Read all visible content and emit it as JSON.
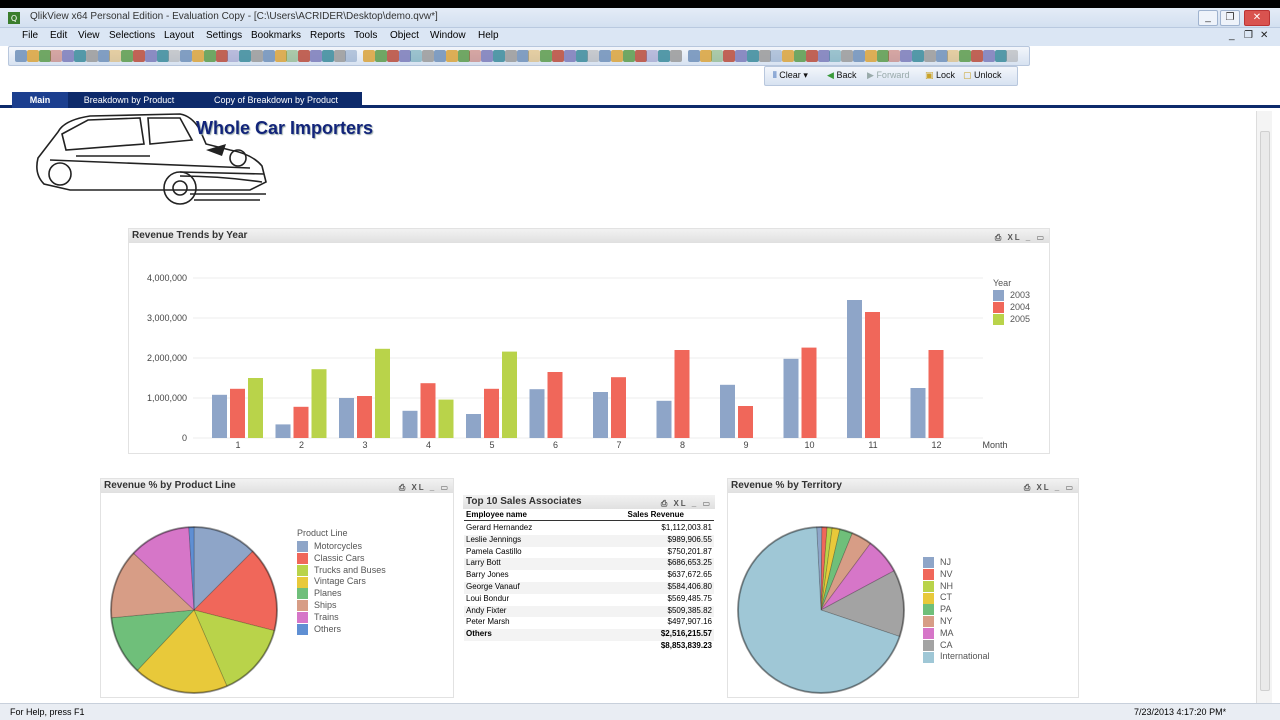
{
  "window": {
    "title": "QlikView x64 Personal Edition - Evaluation Copy - [C:\\Users\\ACRIDER\\Desktop\\demo.qvw*]",
    "controls": [
      "_",
      "❐",
      "✕"
    ]
  },
  "menu": [
    "File",
    "Edit",
    "View",
    "Selections",
    "Layout",
    "Settings",
    "Bookmarks",
    "Reports",
    "Tools",
    "Object",
    "Window",
    "Help"
  ],
  "mdi_controls": [
    "_",
    "❐",
    "✕"
  ],
  "toolbar2": {
    "clear": "Clear",
    "back": "Back",
    "forward": "Forward",
    "lock": "Lock",
    "unlock": "Unlock"
  },
  "tabs": [
    "Main",
    "Breakdown by Product",
    "Copy of Breakdown by Product"
  ],
  "app_title": "Whole Car Importers",
  "caption_icons": "⎙ XL _ ▭",
  "revenue_chart": {
    "caption": "Revenue Trends by Year",
    "chart_data": {
      "type": "bar",
      "categories": [
        "1",
        "2",
        "3",
        "4",
        "5",
        "6",
        "7",
        "8",
        "9",
        "10",
        "11",
        "12"
      ],
      "xlabel": "Month",
      "ylabel": "",
      "ylim": [
        0,
        4500000
      ],
      "yticks": [
        "0",
        "1,000,000",
        "2,000,000",
        "3,000,000",
        "4,000,000"
      ],
      "legend_title": "Year",
      "legend_position": "right",
      "series": [
        {
          "name": "2003",
          "color": "#8ea5c8",
          "values": [
            1080000,
            340000,
            1000000,
            680000,
            600000,
            1220000,
            1150000,
            930000,
            1330000,
            1980000,
            3450000,
            1250000
          ]
        },
        {
          "name": "2004",
          "color": "#f0675a",
          "values": [
            1230000,
            780000,
            1050000,
            1370000,
            1230000,
            1650000,
            1520000,
            2200000,
            800000,
            2260000,
            3150000,
            2200000
          ]
        },
        {
          "name": "2005",
          "color": "#b9d34a",
          "values": [
            1500000,
            1720000,
            2230000,
            960000,
            2160000,
            null,
            null,
            null,
            null,
            null,
            null,
            null
          ]
        }
      ]
    }
  },
  "product_chart": {
    "caption": "Revenue % by Product Line",
    "legend_title": "Product Line",
    "chart_data": {
      "type": "pie",
      "categories": [
        "Motorcycles",
        "Classic Cars",
        "Trucks and Buses",
        "Vintage Cars",
        "Planes",
        "Ships",
        "Trains",
        "Others"
      ],
      "colors": [
        "#8ea5c8",
        "#f0675a",
        "#b9d34a",
        "#e8c93a",
        "#6fbf7a",
        "#d79d86",
        "#d676c8",
        "#5f8fd3"
      ],
      "values": [
        12.5,
        16.5,
        14.5,
        18.5,
        11.5,
        13.5,
        12.0,
        1.0
      ]
    }
  },
  "sales_table": {
    "caption": "Top 10 Sales Associates",
    "columns": [
      "Employee name",
      "Sales Revenue"
    ],
    "rows": [
      {
        "name": "Gerard Hernandez",
        "value": "$1,112,003.81"
      },
      {
        "name": "Leslie Jennings",
        "value": "$989,906.55"
      },
      {
        "name": "Pamela Castillo",
        "value": "$750,201.87"
      },
      {
        "name": "Larry Bott",
        "value": "$686,653.25"
      },
      {
        "name": "Barry Jones",
        "value": "$637,672.65"
      },
      {
        "name": "George Vanauf",
        "value": "$584,406.80"
      },
      {
        "name": "Loui Bondur",
        "value": "$569,485.75"
      },
      {
        "name": "Andy Fixter",
        "value": "$509,385.82"
      },
      {
        "name": "Peter Marsh",
        "value": "$497,907.16"
      },
      {
        "name": "Others",
        "value": "$2,516,215.57"
      }
    ],
    "total": "$8,853,839.23"
  },
  "territory_chart": {
    "caption": "Revenue % by Territory",
    "chart_data": {
      "type": "pie",
      "categories": [
        "NJ",
        "NV",
        "NH",
        "CT",
        "PA",
        "NY",
        "MA",
        "CA",
        "International"
      ],
      "colors": [
        "#8ea5c8",
        "#f0675a",
        "#b9d34a",
        "#e8c93a",
        "#6fbf7a",
        "#d79d86",
        "#d676c8",
        "#a3a3a3",
        "#9fc7d6"
      ],
      "values": [
        1.0,
        1.0,
        1.0,
        1.5,
        2.5,
        4.0,
        7.0,
        13.0,
        69.0
      ]
    }
  },
  "status": {
    "help": "For Help, press F1",
    "datetime": "7/23/2013 4:17:20 PM*"
  }
}
